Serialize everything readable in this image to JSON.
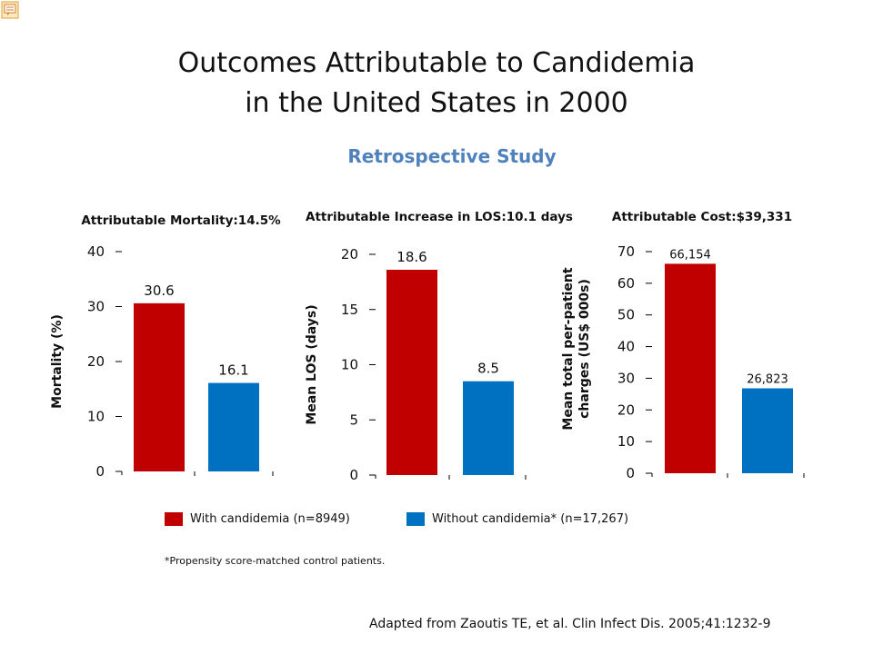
{
  "title_lines": [
    "Outcomes Attributable to Candidemia",
    "in the United States in 2000"
  ],
  "subtitle": "Retrospective Study",
  "legend": [
    {
      "label": "With candidemia (n=8949)",
      "color": "#c00000"
    },
    {
      "label": "Without candidemia* (n=17,267)",
      "color": "#0070c0"
    }
  ],
  "footnote": "*Propensity score-matched control patients.",
  "citation": "Adapted from Zaoutis TE, et al. Clin Infect Dis. 2005;41:1232-9",
  "icons": {
    "note": "comment-note-icon"
  },
  "chart_data": [
    {
      "type": "bar",
      "title": "Attributable Mortality:14.5%",
      "ylabel": "Mortality (%)",
      "ylim": [
        0,
        40
      ],
      "ticks": [
        0,
        10,
        20,
        30,
        40
      ],
      "tick_labels": [
        "0",
        "10",
        "20",
        "30",
        "40"
      ],
      "series": [
        {
          "color": "#c00000",
          "values": [
            30.6
          ],
          "labels": [
            "30.6"
          ]
        },
        {
          "color": "#0070c0",
          "values": [
            16.1
          ],
          "labels": [
            "16.1"
          ]
        }
      ]
    },
    {
      "type": "bar",
      "title": "Attributable Increase in LOS:10.1 days",
      "ylabel": "Mean LOS (days)",
      "ylim": [
        0,
        20
      ],
      "ticks": [
        0,
        5,
        10,
        15,
        20
      ],
      "tick_labels": [
        "0",
        "5",
        "10",
        "15",
        "20"
      ],
      "series": [
        {
          "color": "#c00000",
          "values": [
            18.6
          ],
          "labels": [
            "18.6"
          ]
        },
        {
          "color": "#0070c0",
          "values": [
            8.5
          ],
          "labels": [
            "8.5"
          ]
        }
      ]
    },
    {
      "type": "bar",
      "title": "Attributable Cost:$39,331",
      "ylabel": [
        "Mean total per-patient",
        "charges (US$ 000s)"
      ],
      "ylim": [
        0,
        70
      ],
      "ticks": [
        0,
        10,
        20,
        30,
        40,
        50,
        60,
        70
      ],
      "tick_labels": [
        "0",
        "10",
        "20",
        "30",
        "40",
        "50",
        "60",
        "70"
      ],
      "series": [
        {
          "color": "#c00000",
          "values": [
            66.154
          ],
          "labels": [
            "66,154"
          ]
        },
        {
          "color": "#0070c0",
          "values": [
            26.823
          ],
          "labels": [
            "26,823"
          ]
        }
      ]
    }
  ]
}
